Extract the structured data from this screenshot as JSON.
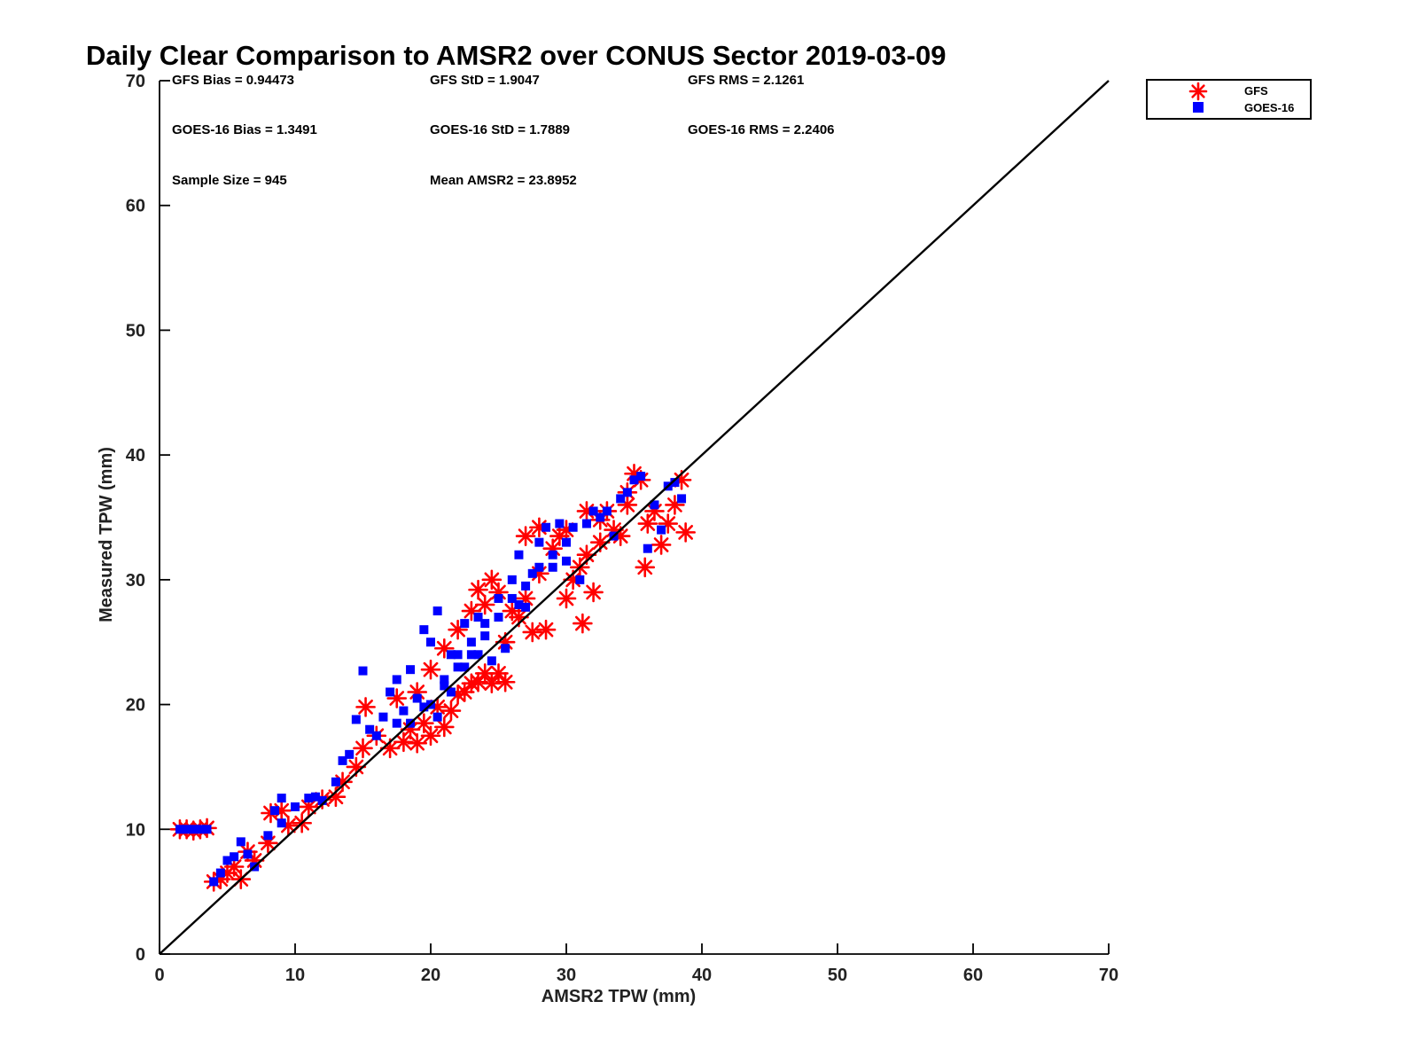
{
  "chart_data": {
    "type": "scatter",
    "title": "Daily Clear Comparison to AMSR2 over CONUS Sector 2019-03-09",
    "xlabel": "AMSR2 TPW (mm)",
    "ylabel": "Measured TPW (mm)",
    "xlim": [
      0,
      70
    ],
    "ylim": [
      0,
      70
    ],
    "xticks": [
      "0",
      "10",
      "20",
      "30",
      "40",
      "50",
      "60",
      "70"
    ],
    "yticks": [
      "0",
      "10",
      "20",
      "30",
      "40",
      "50",
      "60",
      "70"
    ],
    "grid": false,
    "legend_position": "outside-top-right",
    "reference_line": {
      "x": [
        0,
        70
      ],
      "y": [
        0,
        70
      ],
      "color": "#000000"
    },
    "stats": [
      "GFS Bias = 0.94473",
      "GFS StD = 1.9047",
      "GFS RMS = 2.1261",
      "GOES-16 Bias = 1.3491",
      "GOES-16 StD = 1.7889",
      "GOES-16 RMS = 2.2406",
      "Sample Size = 945",
      "Mean AMSR2 = 23.8952"
    ],
    "series": [
      {
        "name": "GFS",
        "marker": "asterisk",
        "color": "#ff0000",
        "points": [
          [
            1.5,
            10
          ],
          [
            2,
            10
          ],
          [
            2.5,
            9.9
          ],
          [
            3,
            10
          ],
          [
            3.5,
            10.1
          ],
          [
            4,
            5.8
          ],
          [
            4.5,
            6
          ],
          [
            5,
            6.5
          ],
          [
            5.5,
            7
          ],
          [
            6,
            6
          ],
          [
            6.5,
            8.2
          ],
          [
            7,
            7.5
          ],
          [
            8,
            8.9
          ],
          [
            8.2,
            11.3
          ],
          [
            9,
            11.5
          ],
          [
            9.5,
            10.3
          ],
          [
            10.5,
            10.5
          ],
          [
            11,
            11.8
          ],
          [
            12,
            12.4
          ],
          [
            13,
            12.6
          ],
          [
            13.5,
            13.8
          ],
          [
            14.5,
            15
          ],
          [
            15,
            16.5
          ],
          [
            15.2,
            19.8
          ],
          [
            16,
            17.5
          ],
          [
            17,
            16.5
          ],
          [
            17.5,
            20.5
          ],
          [
            18,
            17
          ],
          [
            18.5,
            18
          ],
          [
            19,
            16.9
          ],
          [
            19.5,
            18.5
          ],
          [
            20,
            17.5
          ],
          [
            20.5,
            19.8
          ],
          [
            21,
            18.2
          ],
          [
            21.5,
            19.5
          ],
          [
            22,
            20.8
          ],
          [
            22.5,
            21
          ],
          [
            23,
            21.7
          ],
          [
            23.5,
            21.8
          ],
          [
            24,
            22.5
          ],
          [
            24.5,
            21.7
          ],
          [
            25,
            22.5
          ],
          [
            25.5,
            21.8
          ],
          [
            19,
            21
          ],
          [
            20,
            22.8
          ],
          [
            21,
            24.5
          ],
          [
            22,
            26
          ],
          [
            23,
            27.5
          ],
          [
            23.5,
            29.2
          ],
          [
            24,
            28
          ],
          [
            24.5,
            30
          ],
          [
            25,
            29
          ],
          [
            25.5,
            25
          ],
          [
            26,
            27.5
          ],
          [
            26.5,
            27
          ],
          [
            27,
            28.5
          ],
          [
            27.5,
            25.8
          ],
          [
            28,
            30.5
          ],
          [
            28.5,
            26
          ],
          [
            29,
            32.5
          ],
          [
            29.5,
            33.5
          ],
          [
            30,
            28.5
          ],
          [
            30.5,
            30
          ],
          [
            31,
            31
          ],
          [
            31.2,
            26.5
          ],
          [
            31.5,
            32
          ],
          [
            32,
            29
          ],
          [
            32.5,
            33
          ],
          [
            33,
            35.5
          ],
          [
            33.5,
            34
          ],
          [
            34,
            33.5
          ],
          [
            34.5,
            36
          ],
          [
            35,
            38.5
          ],
          [
            35.5,
            38
          ],
          [
            35.8,
            31
          ],
          [
            36,
            34.5
          ],
          [
            36.5,
            35.5
          ],
          [
            37,
            32.8
          ],
          [
            37.5,
            34.5
          ],
          [
            38,
            36
          ],
          [
            38.5,
            38
          ],
          [
            38.8,
            33.8
          ],
          [
            27,
            33.5
          ],
          [
            28,
            34.2
          ],
          [
            30,
            34
          ],
          [
            31.5,
            35.5
          ],
          [
            32.5,
            34.8
          ],
          [
            34.5,
            37
          ]
        ]
      },
      {
        "name": "GOES-16",
        "marker": "square",
        "color": "#0000ff",
        "points": [
          [
            1.5,
            10
          ],
          [
            2,
            10
          ],
          [
            2.5,
            10
          ],
          [
            3,
            10
          ],
          [
            3.5,
            10
          ],
          [
            4,
            5.8
          ],
          [
            4.5,
            6.5
          ],
          [
            5,
            7.5
          ],
          [
            5.5,
            7.8
          ],
          [
            6,
            9
          ],
          [
            6.5,
            8
          ],
          [
            7,
            7
          ],
          [
            8,
            9.5
          ],
          [
            8.5,
            11.5
          ],
          [
            9,
            12.5
          ],
          [
            9,
            10.5
          ],
          [
            10,
            11.8
          ],
          [
            11,
            12.5
          ],
          [
            11.5,
            12.6
          ],
          [
            12,
            12.3
          ],
          [
            13,
            13.8
          ],
          [
            13.5,
            15.5
          ],
          [
            14,
            16
          ],
          [
            14.5,
            18.8
          ],
          [
            15,
            22.7
          ],
          [
            15.5,
            18
          ],
          [
            16,
            17.5
          ],
          [
            16.5,
            19
          ],
          [
            17,
            21
          ],
          [
            17.5,
            22
          ],
          [
            18,
            19.5
          ],
          [
            18.5,
            22.8
          ],
          [
            19,
            20.5
          ],
          [
            19.5,
            26
          ],
          [
            20,
            25
          ],
          [
            20.5,
            27.5
          ],
          [
            21,
            21.5
          ],
          [
            21.5,
            24
          ],
          [
            22,
            23
          ],
          [
            22.5,
            26.5
          ],
          [
            23,
            24
          ],
          [
            23.5,
            27
          ],
          [
            24,
            25.5
          ],
          [
            24.5,
            23.5
          ],
          [
            25,
            28.5
          ],
          [
            25.5,
            24.5
          ],
          [
            26,
            30
          ],
          [
            26.5,
            28
          ],
          [
            27,
            27.8
          ],
          [
            27.5,
            30.5
          ],
          [
            28,
            33
          ],
          [
            28.5,
            34.2
          ],
          [
            29,
            31
          ],
          [
            29.5,
            34.5
          ],
          [
            30,
            33
          ],
          [
            30.5,
            34.2
          ],
          [
            31,
            30
          ],
          [
            31.5,
            34.5
          ],
          [
            32,
            35.5
          ],
          [
            32.5,
            35
          ],
          [
            33,
            35.5
          ],
          [
            33.5,
            33.5
          ],
          [
            34,
            36.5
          ],
          [
            34.5,
            37
          ],
          [
            35,
            38
          ],
          [
            35.5,
            38.3
          ],
          [
            36,
            32.5
          ],
          [
            36.5,
            36
          ],
          [
            37,
            34
          ],
          [
            37.5,
            37.5
          ],
          [
            38,
            37.8
          ],
          [
            38.5,
            36.5
          ],
          [
            20,
            20
          ],
          [
            21,
            22
          ],
          [
            22,
            24
          ],
          [
            23,
            25
          ],
          [
            24,
            26.5
          ],
          [
            25,
            27
          ],
          [
            26,
            28.5
          ],
          [
            27,
            29.5
          ],
          [
            28,
            31
          ],
          [
            29,
            32
          ],
          [
            30,
            31.5
          ],
          [
            20.5,
            19
          ],
          [
            21.5,
            21
          ],
          [
            22.5,
            23
          ],
          [
            23.5,
            24
          ],
          [
            19.5,
            19.8
          ],
          [
            18.5,
            18.5
          ],
          [
            17.5,
            18.5
          ],
          [
            26.5,
            32
          ]
        ]
      }
    ]
  }
}
